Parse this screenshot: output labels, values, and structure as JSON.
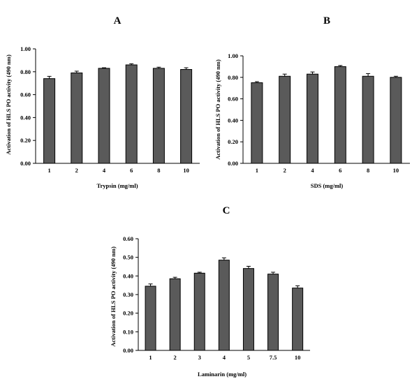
{
  "chart_data": [
    {
      "panel": "A",
      "type": "bar",
      "categories": [
        "1",
        "2",
        "4",
        "6",
        "8",
        "10"
      ],
      "values": [
        0.74,
        0.79,
        0.83,
        0.86,
        0.83,
        0.82
      ],
      "errors": [
        0.02,
        0.015,
        0.005,
        0.01,
        0.01,
        0.015
      ],
      "xlabel": "Trypsin (mg/ml)",
      "ylabel": "Activation of HLS PO activity (490 nm)",
      "ylim": [
        0,
        1.0
      ],
      "yticks": [
        "0.00",
        "0.20",
        "0.40",
        "0.60",
        "0.80",
        "1.00"
      ],
      "grid": false,
      "bar_color": "#5a5a5a"
    },
    {
      "panel": "B",
      "type": "bar",
      "categories": [
        "1",
        "2",
        "4",
        "6",
        "8",
        "10"
      ],
      "values": [
        0.75,
        0.81,
        0.83,
        0.9,
        0.81,
        0.8
      ],
      "errors": [
        0.01,
        0.02,
        0.02,
        0.01,
        0.025,
        0.01
      ],
      "xlabel": "SDS (mg/ml)",
      "ylabel": "Activation of HLS PO activity (490 nm)",
      "ylim": [
        0,
        1.0
      ],
      "yticks": [
        "0.00",
        "0.20",
        "0.40",
        "0.60",
        "0.80",
        "1.00"
      ],
      "grid": false,
      "bar_color": "#5a5a5a"
    },
    {
      "panel": "C",
      "type": "bar",
      "categories": [
        "1",
        "2",
        "3",
        "4",
        "5",
        "7.5",
        "10"
      ],
      "values": [
        0.345,
        0.385,
        0.415,
        0.485,
        0.44,
        0.41,
        0.335
      ],
      "errors": [
        0.012,
        0.008,
        0.005,
        0.012,
        0.012,
        0.01,
        0.012
      ],
      "xlabel": "Laminarin (mg/ml)",
      "ylabel": "Activation of HLS PO activity (490 nm)",
      "ylim": [
        0,
        0.6
      ],
      "yticks": [
        "0.00",
        "0.10",
        "0.20",
        "0.30",
        "0.40",
        "0.50",
        "0.60"
      ],
      "grid": false,
      "bar_color": "#5a5a5a"
    }
  ]
}
